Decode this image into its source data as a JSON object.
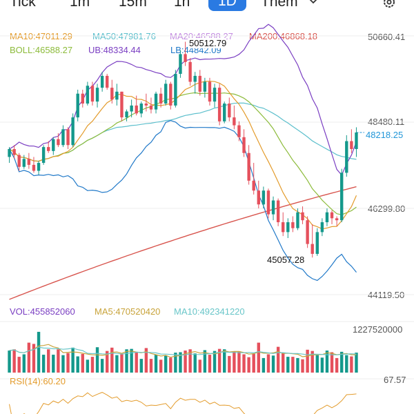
{
  "tabs": [
    {
      "label": "Tick",
      "active": false
    },
    {
      "label": "1m",
      "active": false
    },
    {
      "label": "15m",
      "active": false
    },
    {
      "label": "1h",
      "active": false
    },
    {
      "label": "1D",
      "active": true
    },
    {
      "label": "Them",
      "active": false
    }
  ],
  "indicators": {
    "ma10": "MA10:47011.29",
    "ma50": "MA50:47981.76",
    "ma20": "MA20:46588.27",
    "ma200": "MA200:46868.18",
    "boll": "BOLL:46588.27",
    "ub": "UB:48334.44",
    "lb": "LB:44842.09"
  },
  "price_axis": [
    "50660.41",
    "48480.11",
    "46299.80",
    "44119.50"
  ],
  "high_label": "50512.79",
  "low_label": "45057.28",
  "last_price": "48218.25",
  "volume": {
    "vol": "VOL:455852060",
    "ma5": "MA5:470520420",
    "ma10": "MA10:492341220",
    "axis_max": "1227520000"
  },
  "rsi": {
    "label": "RSI(14):60.20",
    "axis": "67.57"
  },
  "colors": {
    "up": "#14988b",
    "down": "#e5505c",
    "ma10": "#e39b2b",
    "ma20": "#c38be0",
    "ma50": "#5cbfcc",
    "ma200": "#d8554e",
    "boll": "#8cbb3a",
    "ub": "#7a3ec2",
    "lb": "#1f78c8",
    "vol_ma5": "#c8a33a",
    "vol_ma10": "#69c6c9"
  },
  "chart_data": {
    "type": "candlestick",
    "ylim": [
      44119.5,
      50660.41
    ],
    "candles": [
      [
        47600,
        47850,
        47450,
        47800
      ],
      [
        47800,
        47900,
        47550,
        47650
      ],
      [
        47650,
        47700,
        47250,
        47350
      ],
      [
        47350,
        47650,
        47300,
        47550
      ],
      [
        47550,
        47700,
        47300,
        47400
      ],
      [
        47400,
        47600,
        47200,
        47250
      ],
      [
        47250,
        47500,
        47150,
        47450
      ],
      [
        47450,
        47900,
        47400,
        47850
      ],
      [
        47850,
        48000,
        47700,
        47750
      ],
      [
        47750,
        48100,
        47650,
        48050
      ],
      [
        48050,
        48200,
        47850,
        47900
      ],
      [
        47900,
        48400,
        47850,
        48300
      ],
      [
        48300,
        48350,
        47800,
        47900
      ],
      [
        47900,
        48700,
        47850,
        48600
      ],
      [
        48600,
        49300,
        48500,
        49200
      ],
      [
        49200,
        49300,
        48850,
        48950
      ],
      [
        48950,
        49500,
        48900,
        49400
      ],
      [
        49400,
        49500,
        48900,
        49000
      ],
      [
        49000,
        49450,
        48850,
        49350
      ],
      [
        49350,
        49750,
        49250,
        49650
      ],
      [
        49650,
        49700,
        49300,
        49350
      ],
      [
        49350,
        49550,
        48950,
        49050
      ],
      [
        49050,
        49450,
        48900,
        49250
      ],
      [
        49250,
        49250,
        48500,
        48600
      ],
      [
        48600,
        48800,
        48500,
        48750
      ],
      [
        48750,
        49050,
        48600,
        48900
      ],
      [
        48900,
        49150,
        48650,
        48700
      ],
      [
        48700,
        49000,
        48600,
        48950
      ],
      [
        48950,
        49200,
        48750,
        48900
      ],
      [
        48900,
        49100,
        48700,
        48800
      ],
      [
        48800,
        49250,
        48700,
        49200
      ],
      [
        49200,
        49350,
        48850,
        48950
      ],
      [
        48950,
        49550,
        48900,
        49450
      ],
      [
        49450,
        49500,
        48800,
        48900
      ],
      [
        48900,
        49800,
        48850,
        49700
      ],
      [
        49700,
        50300,
        49600,
        50200
      ],
      [
        50200,
        50512.79,
        49900,
        50000
      ],
      [
        50000,
        50100,
        49400,
        49500
      ],
      [
        49500,
        49750,
        49200,
        49650
      ],
      [
        49650,
        49800,
        49150,
        49250
      ],
      [
        49250,
        49600,
        49100,
        49500
      ],
      [
        49500,
        49600,
        48900,
        49000
      ],
      [
        49000,
        49450,
        48850,
        49350
      ],
      [
        49350,
        49450,
        48400,
        48500
      ],
      [
        48500,
        49000,
        48450,
        48950
      ],
      [
        48950,
        49100,
        48500,
        48600
      ],
      [
        48600,
        48900,
        48300,
        48400
      ],
      [
        48400,
        48500,
        48000,
        48100
      ],
      [
        48100,
        48300,
        47600,
        47700
      ],
      [
        47700,
        47900,
        46900,
        47000
      ],
      [
        47000,
        47450,
        46650,
        46750
      ],
      [
        46750,
        47000,
        46300,
        46400
      ],
      [
        46400,
        46850,
        46300,
        46750
      ],
      [
        46750,
        46800,
        46050,
        46150
      ],
      [
        46150,
        46600,
        46000,
        46500
      ],
      [
        46500,
        46550,
        45850,
        45950
      ],
      [
        45950,
        46200,
        45600,
        45700
      ],
      [
        45700,
        46050,
        45550,
        45950
      ],
      [
        45950,
        46100,
        45700,
        45800
      ],
      [
        45800,
        46300,
        45750,
        46200
      ],
      [
        46200,
        46350,
        45900,
        46000
      ],
      [
        46000,
        46100,
        45300,
        45400
      ],
      [
        45400,
        45900,
        45057.28,
        45150
      ],
      [
        45150,
        45800,
        45100,
        45700
      ],
      [
        45700,
        46050,
        45600,
        45950
      ],
      [
        45950,
        46300,
        45850,
        46200
      ],
      [
        46200,
        46250,
        45900,
        46050
      ],
      [
        46050,
        46100,
        45850,
        46000
      ],
      [
        46000,
        47300,
        45950,
        47200
      ],
      [
        47200,
        48150,
        47100,
        48000
      ],
      [
        48000,
        48300,
        47700,
        47800
      ],
      [
        47800,
        48350,
        47600,
        48218.25
      ]
    ],
    "volumes": [
      530,
      560,
      380,
      440,
      720,
      690,
      980,
      430,
      560,
      430,
      560,
      420,
      470,
      600,
      390,
      450,
      310,
      380,
      610,
      330,
      520,
      600,
      420,
      440,
      560,
      570,
      480,
      330,
      590,
      330,
      430,
      310,
      410,
      360,
      480,
      490,
      530,
      560,
      460,
      310,
      540,
      430,
      520,
      570,
      560,
      400,
      500,
      510,
      440,
      370,
      450,
      720,
      350,
      440,
      410,
      620,
      480,
      380,
      380,
      350,
      320,
      550,
      520,
      420,
      360,
      530,
      490,
      350,
      500,
      420,
      390,
      480
    ]
  }
}
